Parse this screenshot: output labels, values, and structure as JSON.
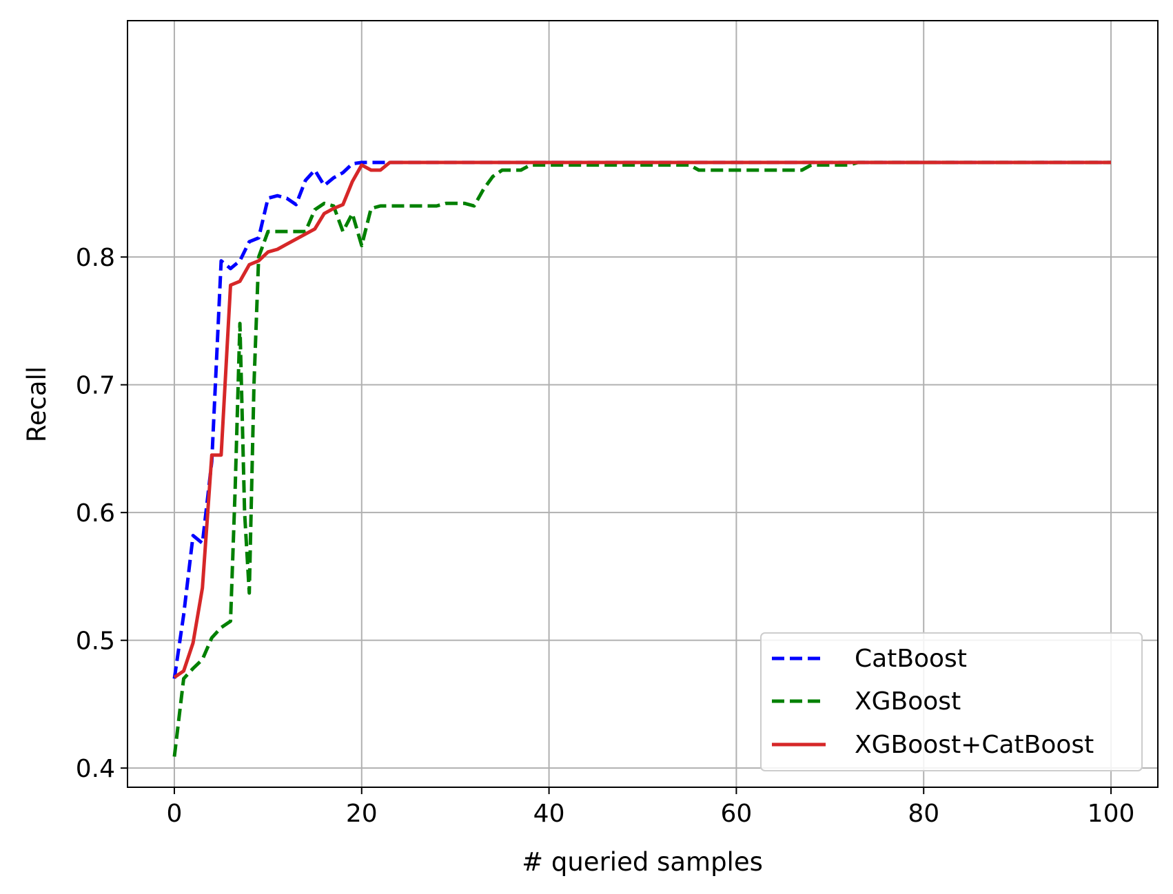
{
  "chart_data": {
    "type": "line",
    "title": "",
    "xlabel": "# queried samples",
    "ylabel": "Recall",
    "xlim": [
      -5,
      105
    ],
    "ylim": [
      0.385,
      0.985
    ],
    "xticks": [
      0,
      20,
      40,
      60,
      80,
      100
    ],
    "yticks": [
      0.4,
      0.5,
      0.6,
      0.7,
      0.8
    ],
    "xtick_labels": [
      "0",
      "20",
      "40",
      "60",
      "80",
      "100"
    ],
    "ytick_labels": [
      "0.4",
      "0.5",
      "0.6",
      "0.7",
      "0.8"
    ],
    "grid": true,
    "legend_position": "bottom-right",
    "series": [
      {
        "name": "CatBoost",
        "color": "#0000ff",
        "style": "dashed",
        "x": [
          0,
          1,
          2,
          3,
          4,
          5,
          6,
          7,
          8,
          9,
          10,
          11,
          12,
          13,
          14,
          15,
          16,
          17,
          18,
          19,
          20,
          21,
          22,
          23,
          30,
          40,
          50,
          60,
          70,
          80,
          90,
          100
        ],
        "y": [
          0.47,
          0.52,
          0.582,
          0.576,
          0.64,
          0.797,
          0.791,
          0.797,
          0.812,
          0.815,
          0.846,
          0.848,
          0.846,
          0.841,
          0.86,
          0.868,
          0.856,
          0.862,
          0.866,
          0.873,
          0.874,
          0.874,
          0.874,
          0.874,
          0.874,
          0.874,
          0.874,
          0.874,
          0.874,
          0.874,
          0.874,
          0.874
        ]
      },
      {
        "name": "XGBoost",
        "color": "#008000",
        "style": "dashed",
        "x": [
          0,
          1,
          2,
          3,
          4,
          5,
          6,
          6.5,
          7,
          7.5,
          8,
          8.5,
          9,
          10,
          11,
          12,
          13,
          14,
          15,
          16,
          17,
          18,
          19,
          20,
          21,
          22,
          28,
          29,
          31,
          32,
          33,
          34,
          35,
          37,
          38,
          40,
          55,
          56,
          67,
          68,
          72,
          73,
          100
        ],
        "y": [
          0.409,
          0.47,
          0.478,
          0.485,
          0.502,
          0.51,
          0.515,
          0.62,
          0.748,
          0.6,
          0.537,
          0.7,
          0.8,
          0.82,
          0.82,
          0.82,
          0.82,
          0.82,
          0.837,
          0.842,
          0.84,
          0.82,
          0.834,
          0.809,
          0.838,
          0.84,
          0.84,
          0.842,
          0.842,
          0.84,
          0.853,
          0.863,
          0.868,
          0.868,
          0.872,
          0.872,
          0.872,
          0.868,
          0.868,
          0.872,
          0.872,
          0.874,
          0.874
        ]
      },
      {
        "name": "XGBoost+CatBoost",
        "color": "#d62728",
        "style": "solid",
        "x": [
          0,
          1,
          2,
          3,
          4,
          5,
          6,
          7,
          8,
          9,
          10,
          11,
          12,
          13,
          14,
          15,
          16,
          17,
          18,
          19,
          20,
          21,
          22,
          23,
          30,
          40,
          50,
          60,
          70,
          80,
          90,
          100
        ],
        "y": [
          0.471,
          0.476,
          0.498,
          0.541,
          0.645,
          0.645,
          0.778,
          0.781,
          0.794,
          0.797,
          0.804,
          0.806,
          0.81,
          0.814,
          0.818,
          0.822,
          0.834,
          0.838,
          0.841,
          0.859,
          0.872,
          0.868,
          0.868,
          0.874,
          0.874,
          0.874,
          0.874,
          0.874,
          0.874,
          0.874,
          0.874,
          0.874
        ]
      }
    ]
  }
}
